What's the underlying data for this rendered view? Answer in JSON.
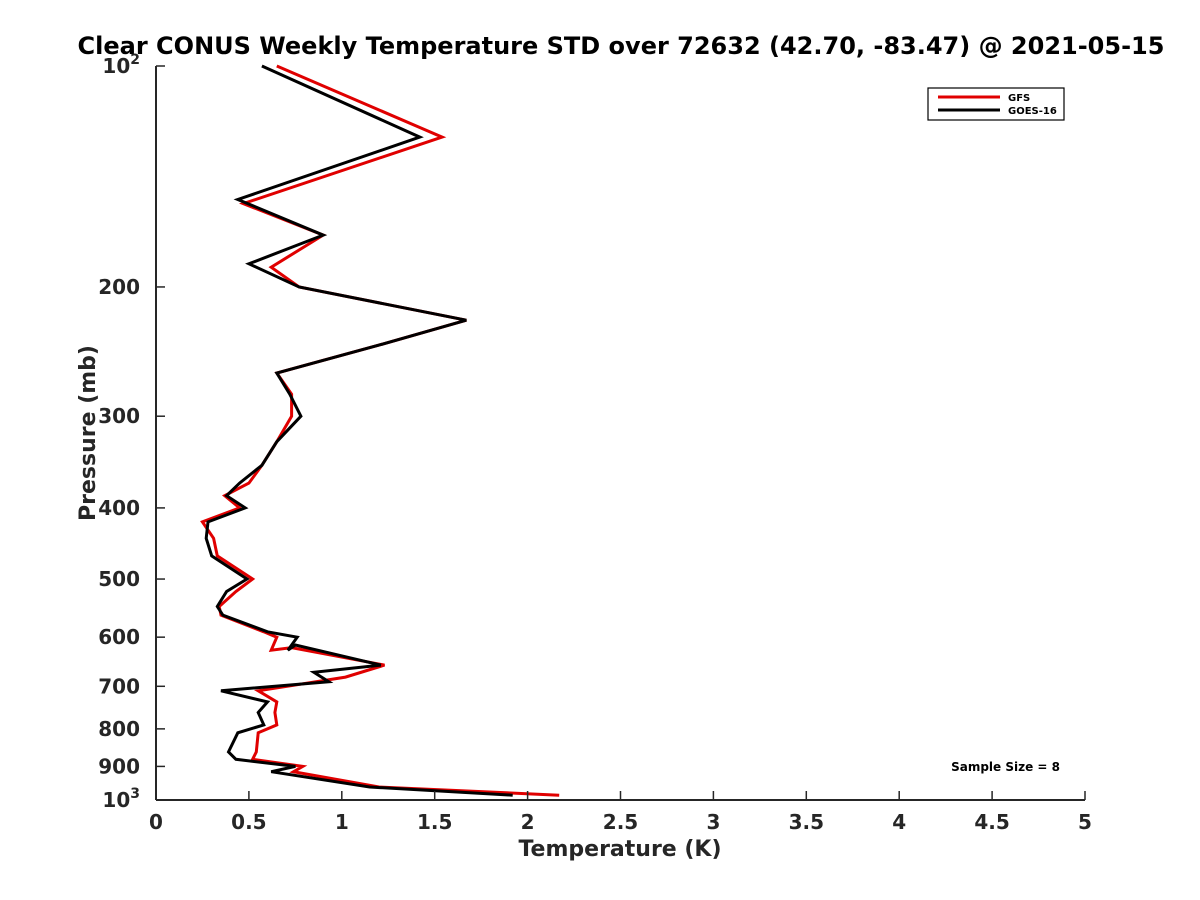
{
  "chart_data": {
    "type": "line",
    "title": "Clear CONUS Weekly Temperature STD over 72632 (42.70, -83.47) @ 2021-05-15",
    "xlabel": "Temperature (K)",
    "ylabel": "Pressure (mb)",
    "xlim": [
      0,
      5
    ],
    "ylim": [
      100,
      1000
    ],
    "y_scale": "log",
    "y_reversed": true,
    "x_ticks": [
      "0",
      "0.5",
      "1",
      "1.5",
      "2",
      "2.5",
      "3",
      "3.5",
      "4",
      "4.5",
      "5"
    ],
    "y_ticks": [
      {
        "value": 100,
        "label": "10",
        "exp": "2"
      },
      {
        "value": 200,
        "label": "200"
      },
      {
        "value": 300,
        "label": "300"
      },
      {
        "value": 400,
        "label": "400"
      },
      {
        "value": 500,
        "label": "500"
      },
      {
        "value": 600,
        "label": "600"
      },
      {
        "value": 700,
        "label": "700"
      },
      {
        "value": 800,
        "label": "800"
      },
      {
        "value": 900,
        "label": "900"
      },
      {
        "value": 1000,
        "label": "10",
        "exp": "3"
      }
    ],
    "legend_position": "top-right",
    "grid": false,
    "annotation": "Sample Size = 8",
    "series": [
      {
        "name": "GFS",
        "color": "#e00000",
        "points": [
          [
            0.65,
            100
          ],
          [
            1.54,
            125
          ],
          [
            0.47,
            154
          ],
          [
            0.9,
            170
          ],
          [
            0.62,
            188
          ],
          [
            0.77,
            200
          ],
          [
            1.67,
            222
          ],
          [
            1.2,
            240
          ],
          [
            0.65,
            262
          ],
          [
            0.73,
            280
          ],
          [
            0.73,
            300
          ],
          [
            0.65,
            325
          ],
          [
            0.57,
            350
          ],
          [
            0.5,
            370
          ],
          [
            0.37,
            385
          ],
          [
            0.45,
            400
          ],
          [
            0.25,
            418
          ],
          [
            0.31,
            440
          ],
          [
            0.33,
            465
          ],
          [
            0.52,
            500
          ],
          [
            0.43,
            520
          ],
          [
            0.34,
            545
          ],
          [
            0.35,
            560
          ],
          [
            0.58,
            590
          ],
          [
            0.65,
            600
          ],
          [
            0.62,
            625
          ],
          [
            0.73,
            620
          ],
          [
            1.23,
            655
          ],
          [
            1.02,
            680
          ],
          [
            0.55,
            710
          ],
          [
            0.65,
            735
          ],
          [
            0.64,
            760
          ],
          [
            0.65,
            790
          ],
          [
            0.55,
            810
          ],
          [
            0.54,
            860
          ],
          [
            0.52,
            880
          ],
          [
            0.79,
            900
          ],
          [
            0.74,
            915
          ],
          [
            1.2,
            960
          ],
          [
            2.17,
            985
          ]
        ]
      },
      {
        "name": "GOES-16",
        "color": "#000000",
        "points": [
          [
            0.57,
            100
          ],
          [
            1.42,
            125
          ],
          [
            0.44,
            152
          ],
          [
            0.9,
            170
          ],
          [
            0.5,
            186
          ],
          [
            0.77,
            200
          ],
          [
            1.67,
            222
          ],
          [
            1.2,
            240
          ],
          [
            0.65,
            262
          ],
          [
            0.72,
            280
          ],
          [
            0.78,
            300
          ],
          [
            0.65,
            325
          ],
          [
            0.57,
            350
          ],
          [
            0.45,
            370
          ],
          [
            0.38,
            385
          ],
          [
            0.48,
            400
          ],
          [
            0.28,
            418
          ],
          [
            0.27,
            440
          ],
          [
            0.3,
            465
          ],
          [
            0.49,
            500
          ],
          [
            0.38,
            520
          ],
          [
            0.33,
            545
          ],
          [
            0.36,
            560
          ],
          [
            0.6,
            590
          ],
          [
            0.76,
            600
          ],
          [
            0.71,
            625
          ],
          [
            0.75,
            615
          ],
          [
            1.21,
            655
          ],
          [
            0.85,
            670
          ],
          [
            0.93,
            690
          ],
          [
            0.35,
            710
          ],
          [
            0.6,
            735
          ],
          [
            0.55,
            760
          ],
          [
            0.58,
            790
          ],
          [
            0.44,
            810
          ],
          [
            0.39,
            860
          ],
          [
            0.43,
            880
          ],
          [
            0.75,
            900
          ],
          [
            0.62,
            915
          ],
          [
            1.15,
            960
          ],
          [
            1.92,
            985
          ]
        ]
      }
    ]
  }
}
